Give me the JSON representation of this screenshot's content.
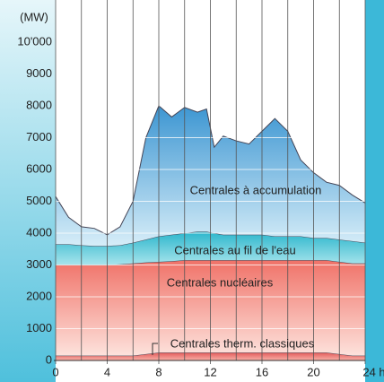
{
  "chart_data": {
    "type": "stacked_area",
    "y_label": "(MW)",
    "x": [
      0,
      1,
      2,
      3,
      4,
      5,
      6,
      7,
      8,
      9,
      10,
      11,
      11.7,
      12.3,
      13,
      14,
      15,
      16,
      17,
      18,
      19,
      20,
      21,
      22,
      23,
      24
    ],
    "series": [
      {
        "name": "Centrales therm. classiques",
        "color": "#e45a5a",
        "values": [
          150,
          150,
          150,
          150,
          150,
          150,
          150,
          200,
          250,
          250,
          250,
          250,
          250,
          250,
          250,
          250,
          250,
          250,
          250,
          250,
          250,
          250,
          250,
          200,
          150,
          150
        ]
      },
      {
        "name": "Centrales nucléaires",
        "color": "#f07c72",
        "values": [
          2850,
          2850,
          2850,
          2850,
          2850,
          2870,
          2900,
          2880,
          2850,
          2870,
          2900,
          2900,
          2900,
          2900,
          2900,
          2900,
          2900,
          2900,
          2900,
          2900,
          2900,
          2900,
          2900,
          2900,
          2900,
          2900
        ]
      },
      {
        "name": "Centrales au fil de l'eau",
        "color": "#3cc2d4",
        "values": [
          650,
          650,
          620,
          600,
          600,
          600,
          650,
          720,
          800,
          830,
          850,
          900,
          900,
          850,
          800,
          800,
          800,
          800,
          750,
          750,
          750,
          700,
          700,
          700,
          700,
          650
        ]
      },
      {
        "name": "Centrales à accumulation",
        "color": "#4aa3d8",
        "values": [
          1500,
          850,
          580,
          550,
          350,
          580,
          1300,
          3200,
          4100,
          3700,
          3950,
          3750,
          3850,
          2700,
          3100,
          2950,
          2850,
          3250,
          3700,
          3300,
          2400,
          2050,
          1750,
          1700,
          1450,
          1250
        ]
      }
    ],
    "xlim": [
      0,
      24
    ],
    "xticks": [
      0,
      4,
      8,
      12,
      16,
      20,
      {
        "value": 24,
        "label": "24 h"
      }
    ],
    "xminor": [
      2,
      6,
      10,
      14,
      18,
      22
    ],
    "ylim": [
      0,
      11000
    ],
    "yticks": [
      0,
      1000,
      2000,
      3000,
      4000,
      5000,
      6000,
      7000,
      8000,
      9000,
      {
        "value": 10000,
        "label": "10'000"
      }
    ],
    "grid": true
  }
}
